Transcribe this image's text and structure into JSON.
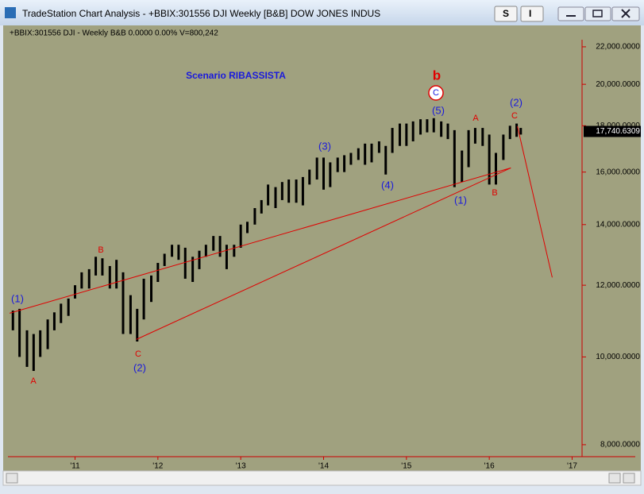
{
  "window": {
    "title": "TradeStation Chart Analysis - +BBIX:301556 DJI Weekly [B&B] DOW JONES INDUS",
    "buttons": [
      "S",
      "I"
    ],
    "info": "+BBIX:301556 DJI - Weekly   B&B   0.0000   0.00%   V=800,242"
  },
  "chart_data": {
    "type": "ohlc",
    "title": "Scenario RIBASSISTA",
    "log_scale": true,
    "color": "#000000",
    "background": "#a0a17f",
    "x": [
      2010.25,
      2010.33,
      2010.42,
      2010.5,
      2010.58,
      2010.67,
      2010.75,
      2010.83,
      2010.92,
      2011.0,
      2011.08,
      2011.17,
      2011.25,
      2011.33,
      2011.42,
      2011.5,
      2011.58,
      2011.67,
      2011.75,
      2011.83,
      2011.92,
      2012.0,
      2012.08,
      2012.17,
      2012.25,
      2012.33,
      2012.42,
      2012.5,
      2012.58,
      2012.67,
      2012.75,
      2012.83,
      2012.92,
      2013.0,
      2013.08,
      2013.17,
      2013.25,
      2013.33,
      2013.42,
      2013.5,
      2013.58,
      2013.67,
      2013.75,
      2013.83,
      2013.92,
      2014.0,
      2014.08,
      2014.17,
      2014.25,
      2014.33,
      2014.42,
      2014.5,
      2014.58,
      2014.67,
      2014.75,
      2014.83,
      2014.92,
      2015.0,
      2015.08,
      2015.17,
      2015.25,
      2015.33,
      2015.42,
      2015.5,
      2015.58,
      2015.67,
      2015.75,
      2015.83,
      2015.92,
      2016.0,
      2016.08,
      2016.17,
      2016.25,
      2016.33,
      2016.38
    ],
    "high": [
      11250,
      11300,
      10700,
      10600,
      10700,
      11000,
      11200,
      11450,
      11600,
      12000,
      12400,
      12500,
      12900,
      12850,
      12600,
      12800,
      12400,
      11700,
      11300,
      12200,
      12300,
      12700,
      13000,
      13300,
      13300,
      13200,
      12900,
      13100,
      13300,
      13600,
      13600,
      13300,
      13300,
      14000,
      14100,
      14600,
      14900,
      15500,
      15400,
      15600,
      15700,
      15700,
      15800,
      16100,
      16600,
      16600,
      16400,
      16600,
      16700,
      16800,
      17000,
      17200,
      17200,
      17300,
      17100,
      17900,
      18100,
      18100,
      18200,
      18300,
      18300,
      18350,
      18200,
      18100,
      17800,
      16900,
      17800,
      17900,
      17900,
      17600,
      16800,
      17600,
      18000,
      18100,
      17900
    ],
    "low": [
      10700,
      10000,
      9750,
      9650,
      10000,
      10200,
      10700,
      10900,
      11100,
      11600,
      11900,
      11900,
      12300,
      12300,
      11900,
      11900,
      10600,
      10600,
      10400,
      11000,
      11500,
      12100,
      12600,
      12900,
      12800,
      12200,
      12100,
      12500,
      12900,
      13100,
      12900,
      12500,
      12900,
      13200,
      13700,
      14000,
      14400,
      14700,
      14600,
      14900,
      14800,
      14800,
      14700,
      15500,
      15700,
      15300,
      15400,
      16000,
      16000,
      16300,
      16500,
      16300,
      16400,
      16800,
      15900,
      16800,
      17100,
      17100,
      17300,
      17600,
      17700,
      17700,
      17500,
      17400,
      15400,
      15600,
      16200,
      17200,
      17100,
      15500,
      15500,
      16500,
      17400,
      17500,
      17600
    ],
    "lines": [
      {
        "color": "#e00000",
        "x": [
          2010.21,
          2016.26
        ],
        "y": [
          11175,
          16170
        ]
      },
      {
        "color": "#e00000",
        "x": [
          2011.74,
          2016.26
        ],
        "y": [
          10455,
          16170
        ]
      },
      {
        "color": "#e00000",
        "x": [
          2016.34,
          2016.76
        ],
        "y": [
          17970,
          12240
        ]
      }
    ],
    "annotations": [
      {
        "text": "(1)",
        "color": "#1a1adc"
      },
      {
        "text": "A",
        "color": "#e00000"
      },
      {
        "text": "B",
        "color": "#e00000"
      },
      {
        "text": "C",
        "color": "#e00000"
      },
      {
        "text": "(2)",
        "color": "#1a1adc"
      },
      {
        "text": "(3)",
        "color": "#1a1adc"
      },
      {
        "text": "(4)",
        "color": "#1a1adc"
      },
      {
        "text": "(5)",
        "color": "#1a1adc"
      },
      {
        "text": "C",
        "color": "#1a1adc"
      },
      {
        "text": "b",
        "color": "#e00000"
      },
      {
        "text": "A",
        "color": "#e00000"
      },
      {
        "text": "(1)",
        "color": "#1a1adc"
      },
      {
        "text": "B",
        "color": "#e00000"
      },
      {
        "text": "C",
        "color": "#e00000"
      },
      {
        "text": "(2)",
        "color": "#1a1adc"
      }
    ],
    "last_price": {
      "value": 17740.6309,
      "label": "17,740.6309"
    },
    "xlim": [
      2010.19,
      2017.12
    ],
    "ylim": [
      7760,
      23800
    ],
    "xticks": [
      {
        "value": 2011,
        "label": "'11"
      },
      {
        "value": 2012,
        "label": "'12"
      },
      {
        "value": 2013,
        "label": "'13"
      },
      {
        "value": 2014,
        "label": "'14"
      },
      {
        "value": 2015,
        "label": "'15"
      },
      {
        "value": 2016,
        "label": "'16"
      },
      {
        "value": 2017,
        "label": "'17"
      }
    ],
    "yticks": [
      {
        "value": 8000,
        "label": "8,000.0000"
      },
      {
        "value": 10000,
        "label": "10,000.0000"
      },
      {
        "value": 12000,
        "label": "12,000.0000"
      },
      {
        "value": 14000,
        "label": "14,000.0000"
      },
      {
        "value": 16000,
        "label": "16,000.0000"
      },
      {
        "value": 18000,
        "label": "18,000.0000"
      },
      {
        "value": 20000,
        "label": "20,000.0000"
      },
      {
        "value": 22000,
        "label": "22,000.0000"
      }
    ]
  }
}
